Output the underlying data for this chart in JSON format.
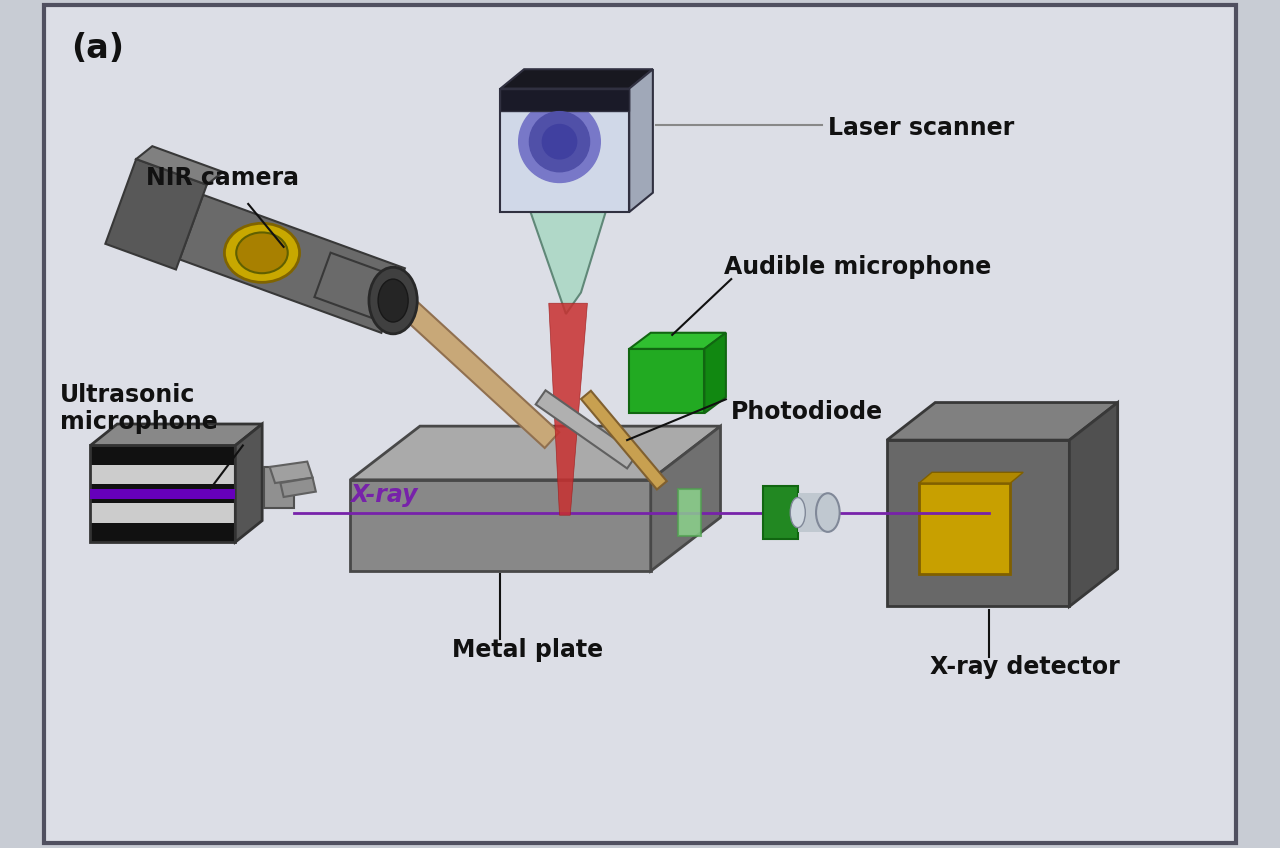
{
  "bg_color": "#c8ccd4",
  "inner_bg": "#dcdee6",
  "title_label": "(a)",
  "labels": {
    "nir_camera": "NIR camera",
    "laser_scanner": "Laser scanner",
    "audible_mic": "Audible microphone",
    "ultrasonic_mic": "Ultrasonic\nmicrophone",
    "photodiode": "Photodiode",
    "xray": "X-ray",
    "metal_plate": "Metal plate",
    "xray_detector": "X-ray detector"
  },
  "label_color": "#111111",
  "xray_color": "#7722aa",
  "laser_beam_color": "#c03030",
  "green_color": "#22aa22",
  "gray_color": "#808080",
  "dark_gray": "#555555",
  "light_gray": "#aaaaaa",
  "yellow_color": "#c8a000",
  "tan_color": "#c8a070",
  "white_color": "#e8ecf8",
  "teal_color": "#90c8b8"
}
